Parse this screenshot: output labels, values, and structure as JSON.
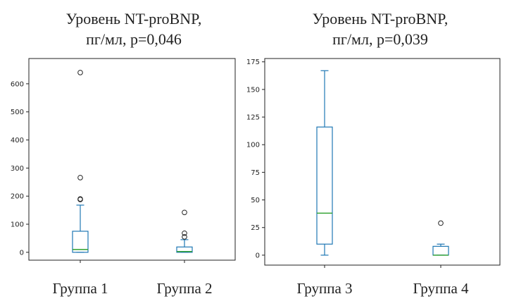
{
  "chart_data": [
    {
      "type": "box",
      "title_line1": "Уровень NT-proBNP,",
      "title_line2": "пг/мл, p=0,046",
      "ylim": [
        -28,
        690
      ],
      "yticks": [
        0,
        100,
        200,
        300,
        400,
        500,
        600
      ],
      "colors": {
        "box": "#1f77b4",
        "median": "#2ca02c",
        "flier": "#222222"
      },
      "boxes": [
        {
          "label": "Группа 1",
          "whisker_low": 0,
          "q1": 0,
          "median": 10,
          "q3": 75,
          "whisker_high": 168,
          "fliers": [
            188,
            190,
            266,
            640
          ]
        },
        {
          "label": "Группа 2",
          "whisker_low": 0,
          "q1": 0,
          "median": 3,
          "q3": 19,
          "whisker_high": 45,
          "fliers": [
            55,
            68,
            142
          ]
        }
      ]
    },
    {
      "type": "box",
      "title_line1": "Уровень NT-proBNP,",
      "title_line2": "пг/мл, p=0,039",
      "ylim": [
        -9,
        178
      ],
      "yticks": [
        0,
        25,
        50,
        75,
        100,
        125,
        150,
        175
      ],
      "colors": {
        "box": "#1f77b4",
        "median": "#2ca02c",
        "flier": "#222222"
      },
      "boxes": [
        {
          "label": "Группа 3",
          "whisker_low": 0,
          "q1": 10,
          "median": 38,
          "q3": 116,
          "whisker_high": 167,
          "fliers": []
        },
        {
          "label": "Группа 4",
          "whisker_low": 0,
          "q1": 0,
          "median": 0,
          "q3": 8,
          "whisker_high": 10,
          "fliers": [
            29
          ]
        }
      ]
    }
  ]
}
